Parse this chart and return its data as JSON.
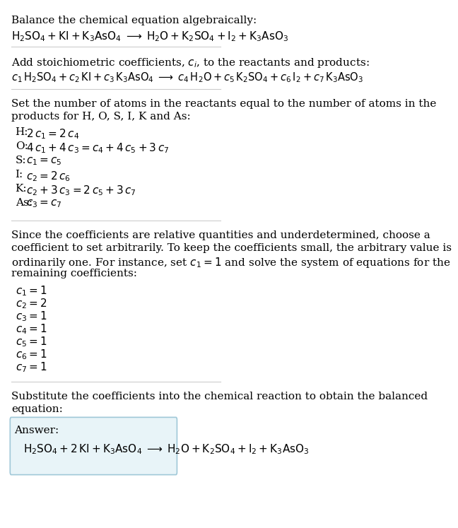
{
  "bg_color": "#ffffff",
  "text_color": "#000000",
  "title_line": "Balance the chemical equation algebraically:",
  "eq1": "$\\mathrm{H_2SO_4 + KI + K_3AsO_4 \\;\\longrightarrow\\; H_2O + K_2SO_4 + I_2 + K_3AsO_3}$",
  "section2_title": "Add stoichiometric coefficients, $c_i$, to the reactants and products:",
  "eq2": "$c_1\\,\\mathrm{H_2SO_4} + c_2\\,\\mathrm{KI} + c_3\\,\\mathrm{K_3AsO_4} \\;\\longrightarrow\\; c_4\\,\\mathrm{H_2O} + c_5\\,\\mathrm{K_2SO_4} + c_6\\,\\mathrm{I_2} + c_7\\,\\mathrm{K_3AsO_3}$",
  "section3_title1": "Set the number of atoms in the reactants equal to the number of atoms in the",
  "section3_title2": "products for H, O, S, I, K and As:",
  "atom_equations": [
    [
      "H:",
      "$2\\,c_1 = 2\\,c_4$"
    ],
    [
      "O:",
      "$4\\,c_1 + 4\\,c_3 = c_4 + 4\\,c_5 + 3\\,c_7$"
    ],
    [
      "S:",
      "$c_1 = c_5$"
    ],
    [
      "I:",
      "$c_2 = 2\\,c_6$"
    ],
    [
      "K:",
      "$c_2 + 3\\,c_3 = 2\\,c_5 + 3\\,c_7$"
    ],
    [
      "As:",
      "$c_3 = c_7$"
    ]
  ],
  "section4_intro1": "Since the coefficients are relative quantities and underdetermined, choose a",
  "section4_intro2": "coefficient to set arbitrarily. To keep the coefficients small, the arbitrary value is",
  "section4_intro3": "ordinarily one. For instance, set $c_1 = 1$ and solve the system of equations for the",
  "section4_intro4": "remaining coefficients:",
  "coefficients": [
    "$c_1 = 1$",
    "$c_2 = 2$",
    "$c_3 = 1$",
    "$c_4 = 1$",
    "$c_5 = 1$",
    "$c_6 = 1$",
    "$c_7 = 1$"
  ],
  "section5_title1": "Substitute the coefficients into the chemical reaction to obtain the balanced",
  "section5_title2": "equation:",
  "answer_label": "Answer:",
  "answer_eq": "$\\mathrm{H_2SO_4 + 2\\,KI + K_3AsO_4 \\;\\longrightarrow\\; H_2O + K_2SO_4 + I_2 + K_3AsO_3}$",
  "answer_box_color": "#e8f4f8",
  "answer_box_border": "#a0c8d8"
}
